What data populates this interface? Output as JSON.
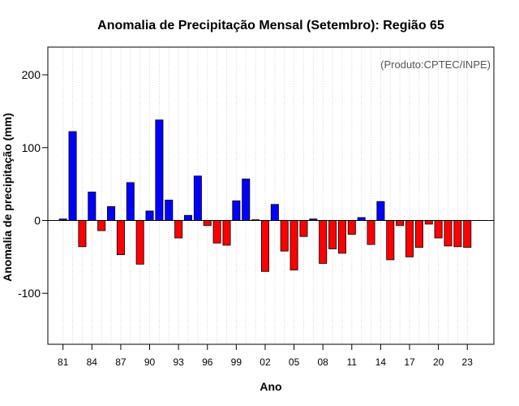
{
  "chart_data": {
    "type": "bar",
    "title": "Anomalia de Precipitação Mensal (Setembro): Região 65",
    "credit": "(Produto:CPTEC/INPE)",
    "xlabel": "Ano",
    "ylabel": "Anomalia de precipitação (mm)",
    "ylim": [
      -170,
      238
    ],
    "yticks": [
      200,
      100,
      0,
      -100
    ],
    "ytick_labels": [
      "200",
      "100",
      "0",
      "-100"
    ],
    "xtick_labels": [
      "81",
      "84",
      "87",
      "90",
      "93",
      "96",
      "99",
      "02",
      "05",
      "08",
      "11",
      "14",
      "17",
      "20",
      "23"
    ],
    "xtick_category_index": [
      0,
      3,
      6,
      9,
      12,
      15,
      18,
      21,
      24,
      27,
      30,
      33,
      36,
      39,
      42
    ],
    "categories": [
      "1981",
      "1982",
      "1983",
      "1984",
      "1985",
      "1986",
      "1987",
      "1988",
      "1989",
      "1990",
      "1991",
      "1992",
      "1993",
      "1994",
      "1995",
      "1996",
      "1997",
      "1998",
      "1999",
      "2000",
      "2001",
      "2002",
      "2003",
      "2004",
      "2005",
      "2006",
      "2007",
      "2008",
      "2009",
      "2010",
      "2011",
      "2012",
      "2013",
      "2014",
      "2015",
      "2016",
      "2017",
      "2018",
      "2019",
      "2020",
      "2021",
      "2022",
      "2023"
    ],
    "values": [
      2,
      122,
      -36,
      39,
      -14,
      19,
      -47,
      52,
      -60,
      13,
      138,
      28,
      -24,
      7,
      61,
      -7,
      -31,
      -34,
      27,
      57,
      1,
      -70,
      22,
      -42,
      -68,
      -22,
      2,
      -59,
      -39,
      -45,
      -19,
      4,
      -33,
      26,
      -54,
      -7,
      -50,
      -37,
      -5,
      -24,
      -35,
      -36,
      -37
    ],
    "colors": {
      "positive": "#0000ff",
      "negative": "#ff0000",
      "outline": "#000000",
      "grid": "#d3d3d3"
    },
    "grid": "vertical-dotted",
    "legend": "none"
  }
}
